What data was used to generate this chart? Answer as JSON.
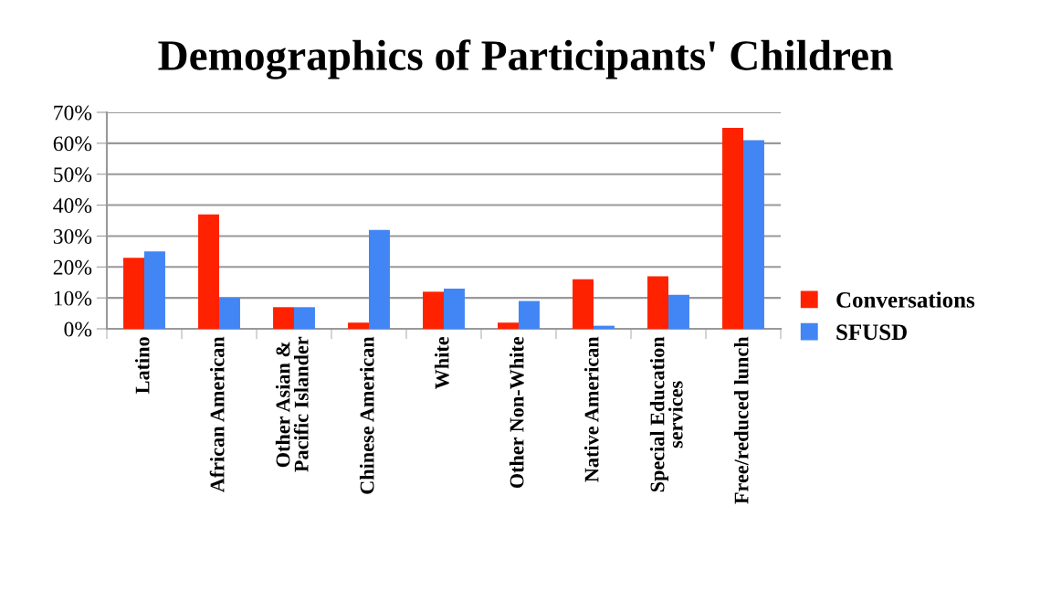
{
  "chart_data": {
    "type": "bar",
    "title": "Demographics of Participants' Children",
    "categories": [
      "Latino",
      "African American",
      "Other Asian & Pacific Islander",
      "Chinese American",
      "White",
      "Other Non-White",
      "Native American",
      "Special Education services",
      "Free/reduced lunch"
    ],
    "series": [
      {
        "name": "Conversations",
        "color": "#ff2200",
        "values": [
          23,
          37,
          7,
          2,
          12,
          2,
          16,
          17,
          65
        ]
      },
      {
        "name": "SFUSD",
        "color": "#4285f4",
        "values": [
          25,
          10,
          7,
          32,
          13,
          9,
          1,
          11,
          61
        ]
      }
    ],
    "ylim": [
      0,
      70
    ],
    "yticks": [
      {
        "value": 0,
        "label": "0%"
      },
      {
        "value": 10,
        "label": "10%"
      },
      {
        "value": 20,
        "label": "20%"
      },
      {
        "value": 30,
        "label": "30%"
      },
      {
        "value": 40,
        "label": "40%"
      },
      {
        "value": 50,
        "label": "50%"
      },
      {
        "value": 60,
        "label": "60%"
      },
      {
        "value": 70,
        "label": "70%"
      }
    ],
    "grid": "y",
    "legend": "right"
  }
}
